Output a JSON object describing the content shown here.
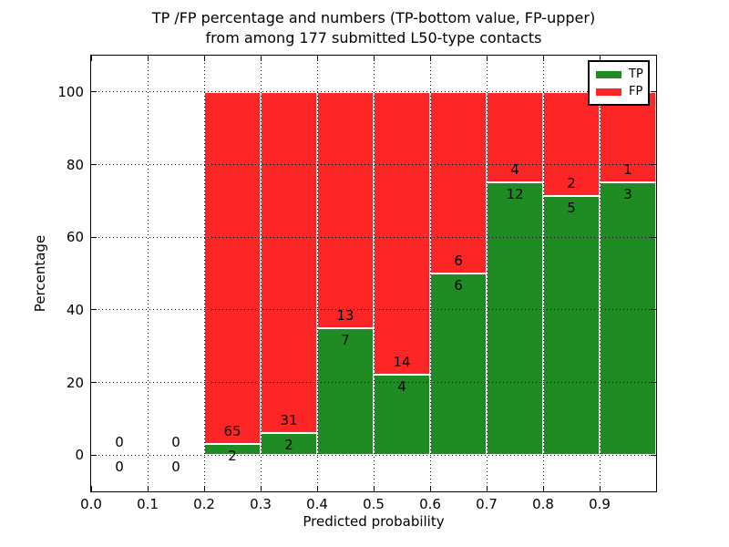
{
  "chart_data": {
    "type": "bar",
    "stacked": true,
    "title_line1": "TP /FP percentage and numbers (TP-bottom value, FP-upper)",
    "title_line2": "from among 177 submitted L50-type contacts",
    "xlabel": "Predicted probability",
    "ylabel": "Percentage",
    "xlim": [
      0.0,
      1.0
    ],
    "ylim": [
      -10,
      110
    ],
    "x_tick_labels": [
      "0.0",
      "0.1",
      "0.2",
      "0.3",
      "0.4",
      "0.5",
      "0.6",
      "0.7",
      "0.8",
      "0.9"
    ],
    "y_tick_values": [
      0,
      20,
      40,
      60,
      80,
      100
    ],
    "grid": "dotted",
    "legend_position": "upper right",
    "bin_width": 0.1,
    "bin_starts": [
      0.0,
      0.1,
      0.2,
      0.3,
      0.4,
      0.5,
      0.6,
      0.7,
      0.8,
      0.9
    ],
    "series": [
      {
        "name": "TP",
        "color": "#1e8c23",
        "counts": [
          0,
          0,
          2,
          2,
          7,
          4,
          6,
          12,
          5,
          3
        ]
      },
      {
        "name": "FP",
        "color": "#fc2626",
        "counts": [
          0,
          0,
          65,
          31,
          13,
          14,
          6,
          4,
          2,
          1
        ]
      }
    ],
    "tp_percentages": [
      null,
      null,
      2.99,
      6.06,
      35.0,
      22.22,
      50.0,
      75.0,
      71.43,
      75.0
    ],
    "bar_edge_color": "#ffffff",
    "total_contacts": 177
  }
}
